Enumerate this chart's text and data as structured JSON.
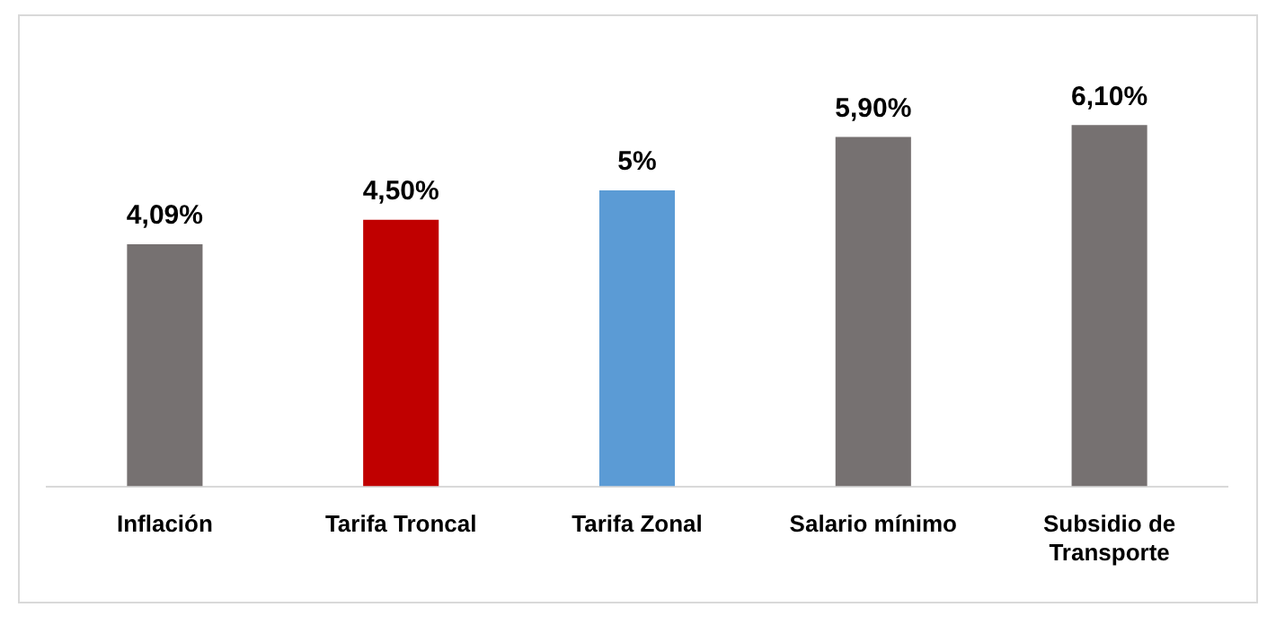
{
  "chart_data": {
    "type": "bar",
    "categories": [
      "Inflación",
      "Tarifa Troncal",
      "Tarifa Zonal",
      "Salario mínimo",
      "Subsidio de Transporte"
    ],
    "values": [
      4.09,
      4.5,
      5,
      5.9,
      6.1
    ],
    "colors": [
      "#767171",
      "#c00000",
      "#5b9bd5",
      "#767171",
      "#767171"
    ],
    "value_labels": [
      "4,09%",
      "4,50%",
      "5%",
      "5,90%",
      "6,10%"
    ],
    "tick_labels": "x",
    "grid": false,
    "legend": false
  }
}
